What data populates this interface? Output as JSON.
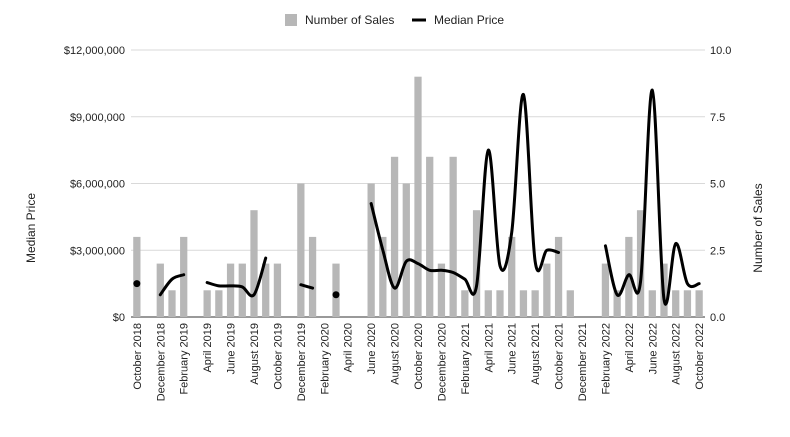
{
  "chart_data": {
    "type": "bar",
    "title": "",
    "xlabel": "",
    "y_left_label": "Median Price",
    "y_right_label": "Number of Sales",
    "y_left_lim": [
      0,
      12000000
    ],
    "y_right_lim": [
      0,
      10
    ],
    "y_left_ticks": [
      "$0",
      "$3,000,000",
      "$6,000,000",
      "$9,000,000",
      "$12,000,000"
    ],
    "y_right_ticks": [
      "0.0",
      "2.5",
      "5.0",
      "7.5",
      "10.0"
    ],
    "grid": true,
    "legend_position": "top",
    "categories": [
      "October 2018",
      "November 2018",
      "December 2018",
      "January 2019",
      "February 2019",
      "March 2019",
      "April 2019",
      "May 2019",
      "June 2019",
      "July 2019",
      "August 2019",
      "September 2019",
      "October 2019",
      "November 2019",
      "December 2019",
      "January 2020",
      "February 2020",
      "March 2020",
      "April 2020",
      "May 2020",
      "June 2020",
      "July 2020",
      "August 2020",
      "September 2020",
      "October 2020",
      "November 2020",
      "December 2020",
      "January 2021",
      "February 2021",
      "March 2021",
      "April 2021",
      "May 2021",
      "June 2021",
      "July 2021",
      "August 2021",
      "September 2021",
      "October 2021",
      "November 2021",
      "December 2021",
      "January 2022",
      "February 2022",
      "March 2022",
      "April 2022",
      "May 2022",
      "June 2022",
      "July 2022",
      "August 2022",
      "September 2022",
      "October 2022"
    ],
    "x_tick_labels": [
      "October 2018",
      "",
      "December 2018",
      "",
      "February 2019",
      "",
      "April 2019",
      "",
      "June 2019",
      "",
      "August 2019",
      "",
      "October 2019",
      "",
      "December 2019",
      "",
      "February 2020",
      "",
      "April 2020",
      "",
      "June 2020",
      "",
      "August 2020",
      "",
      "October 2020",
      "",
      "December 2020",
      "",
      "February 2021",
      "",
      "April 2021",
      "",
      "June 2021",
      "",
      "August 2021",
      "",
      "October 2021",
      "",
      "December 2021",
      "",
      "February 2022",
      "",
      "April 2022",
      "",
      "June 2022",
      "",
      "August 2022",
      "",
      "October 2022"
    ],
    "series": [
      {
        "name": "Number of Sales",
        "type": "bar",
        "axis": "right",
        "color": "#b7b7b7",
        "values": [
          3,
          0,
          2,
          1,
          3,
          0,
          1,
          1,
          2,
          2,
          4,
          2,
          2,
          0,
          5,
          3,
          0,
          2,
          0,
          0,
          5,
          3,
          6,
          5,
          9,
          6,
          2,
          6,
          1,
          4,
          1,
          1,
          3,
          1,
          1,
          2,
          3,
          1,
          0,
          0,
          2,
          1,
          3,
          4,
          1,
          2,
          1,
          1,
          1
        ]
      },
      {
        "name": "Median Price",
        "type": "line",
        "axis": "left",
        "color": "#000000",
        "values": [
          1500000,
          null,
          1000000,
          1700000,
          1900000,
          null,
          1550000,
          1400000,
          1400000,
          1350000,
          1000000,
          2650000,
          null,
          null,
          1450000,
          1300000,
          null,
          1000000,
          null,
          null,
          5100000,
          3000000,
          1300000,
          2500000,
          2400000,
          2100000,
          2100000,
          2000000,
          1700000,
          1400000,
          7500000,
          2300000,
          3800000,
          10000000,
          2500000,
          3000000,
          2900000,
          null,
          null,
          null,
          3200000,
          1000000,
          1900000,
          1600000,
          10200000,
          800000,
          3300000,
          1500000,
          1500000
        ]
      }
    ]
  }
}
